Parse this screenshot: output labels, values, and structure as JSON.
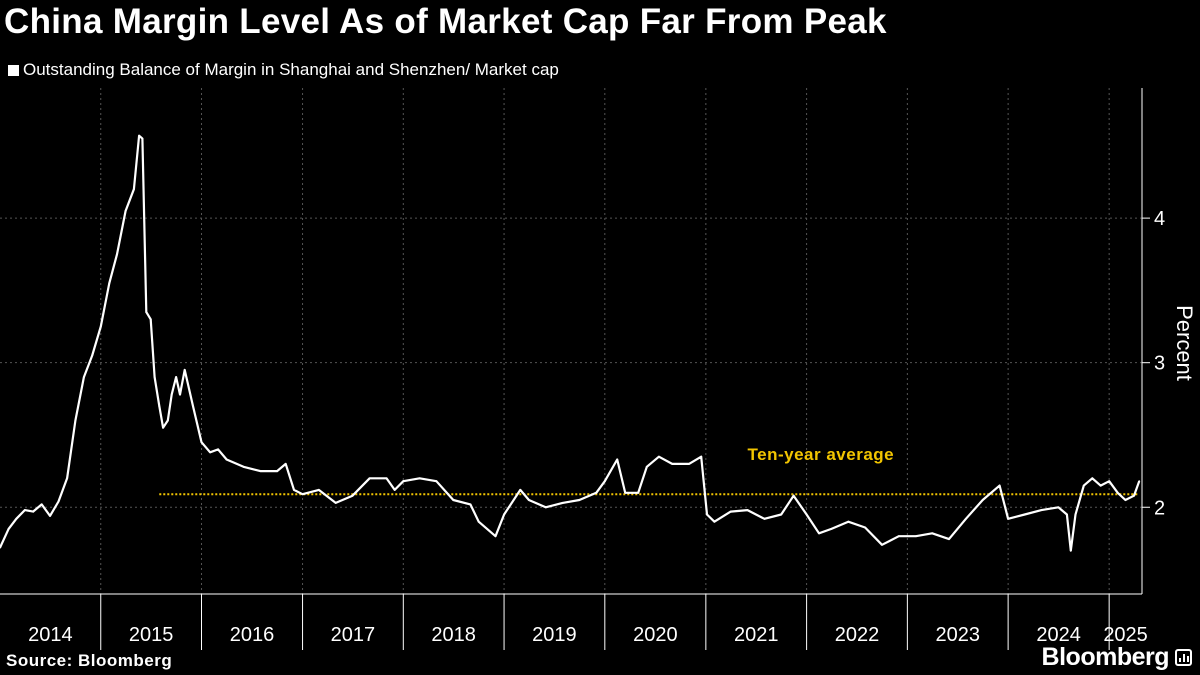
{
  "header": {
    "title": "China Margin Level As of Market Cap Far From Peak"
  },
  "footer": {
    "source": "Source: Bloomberg",
    "brand": "Bloomberg",
    "brand_icon": "bloomberg-chart-icon"
  },
  "colors": {
    "background": "#000000",
    "series": "#ffffff",
    "average_line": "#f2c500",
    "grid": "#555555"
  },
  "chart_data": {
    "type": "line",
    "title": "China Margin Level As of Market Cap Far From Peak",
    "ylabel": "Percent",
    "xlabel": "",
    "ylim": [
      1.4,
      4.9
    ],
    "y_ticks": [
      2,
      3,
      4
    ],
    "y_axis_position": "right",
    "x_tick_labels": [
      "2014",
      "2015",
      "2016",
      "2017",
      "2018",
      "2019",
      "2020",
      "2021",
      "2022",
      "2023",
      "2024",
      "2025"
    ],
    "x_range": [
      "2014-01-01",
      "2025-04-30"
    ],
    "grid": true,
    "legend_placement": "top-left",
    "series": [
      {
        "name": "Outstanding Balance of Margin in Shanghai and Shenzhen/ Market cap",
        "points": [
          [
            "2014-01-01",
            1.72
          ],
          [
            "2014-02-01",
            1.85
          ],
          [
            "2014-03-01",
            1.92
          ],
          [
            "2014-04-01",
            1.98
          ],
          [
            "2014-05-01",
            1.97
          ],
          [
            "2014-06-01",
            2.02
          ],
          [
            "2014-07-01",
            1.94
          ],
          [
            "2014-08-01",
            2.04
          ],
          [
            "2014-09-01",
            2.2
          ],
          [
            "2014-10-01",
            2.6
          ],
          [
            "2014-11-01",
            2.9
          ],
          [
            "2014-12-01",
            3.05
          ],
          [
            "2015-01-01",
            3.25
          ],
          [
            "2015-02-01",
            3.55
          ],
          [
            "2015-03-01",
            3.75
          ],
          [
            "2015-04-01",
            4.05
          ],
          [
            "2015-05-01",
            4.2
          ],
          [
            "2015-05-20",
            4.57
          ],
          [
            "2015-06-01",
            4.55
          ],
          [
            "2015-06-15",
            3.35
          ],
          [
            "2015-07-01",
            3.3
          ],
          [
            "2015-07-15",
            2.9
          ],
          [
            "2015-08-01",
            2.7
          ],
          [
            "2015-08-15",
            2.55
          ],
          [
            "2015-09-01",
            2.6
          ],
          [
            "2015-09-15",
            2.78
          ],
          [
            "2015-10-01",
            2.9
          ],
          [
            "2015-10-15",
            2.78
          ],
          [
            "2015-11-01",
            2.95
          ],
          [
            "2015-12-01",
            2.7
          ],
          [
            "2016-01-01",
            2.45
          ],
          [
            "2016-02-01",
            2.38
          ],
          [
            "2016-03-01",
            2.4
          ],
          [
            "2016-04-01",
            2.33
          ],
          [
            "2016-06-01",
            2.28
          ],
          [
            "2016-08-01",
            2.25
          ],
          [
            "2016-10-01",
            2.25
          ],
          [
            "2016-11-01",
            2.3
          ],
          [
            "2016-12-01",
            2.12
          ],
          [
            "2017-01-01",
            2.09
          ],
          [
            "2017-03-01",
            2.12
          ],
          [
            "2017-05-01",
            2.03
          ],
          [
            "2017-07-01",
            2.08
          ],
          [
            "2017-09-01",
            2.2
          ],
          [
            "2017-11-01",
            2.2
          ],
          [
            "2017-12-01",
            2.12
          ],
          [
            "2018-01-01",
            2.18
          ],
          [
            "2018-03-01",
            2.2
          ],
          [
            "2018-05-01",
            2.18
          ],
          [
            "2018-07-01",
            2.05
          ],
          [
            "2018-09-01",
            2.02
          ],
          [
            "2018-10-01",
            1.9
          ],
          [
            "2018-12-01",
            1.8
          ],
          [
            "2019-01-01",
            1.95
          ],
          [
            "2019-03-01",
            2.12
          ],
          [
            "2019-04-01",
            2.05
          ],
          [
            "2019-06-01",
            2.0
          ],
          [
            "2019-08-01",
            2.03
          ],
          [
            "2019-10-01",
            2.05
          ],
          [
            "2019-12-01",
            2.1
          ],
          [
            "2020-01-01",
            2.18
          ],
          [
            "2020-02-15",
            2.33
          ],
          [
            "2020-03-15",
            2.1
          ],
          [
            "2020-05-01",
            2.1
          ],
          [
            "2020-06-01",
            2.28
          ],
          [
            "2020-07-15",
            2.35
          ],
          [
            "2020-09-01",
            2.3
          ],
          [
            "2020-11-01",
            2.3
          ],
          [
            "2020-12-15",
            2.35
          ],
          [
            "2021-01-05",
            1.95
          ],
          [
            "2021-02-01",
            1.9
          ],
          [
            "2021-04-01",
            1.97
          ],
          [
            "2021-06-01",
            1.98
          ],
          [
            "2021-08-01",
            1.92
          ],
          [
            "2021-10-01",
            1.95
          ],
          [
            "2021-11-15",
            2.08
          ],
          [
            "2022-01-01",
            1.95
          ],
          [
            "2022-02-15",
            1.82
          ],
          [
            "2022-04-01",
            1.85
          ],
          [
            "2022-06-01",
            1.9
          ],
          [
            "2022-08-01",
            1.86
          ],
          [
            "2022-10-01",
            1.74
          ],
          [
            "2022-12-01",
            1.8
          ],
          [
            "2023-02-01",
            1.8
          ],
          [
            "2023-04-01",
            1.82
          ],
          [
            "2023-06-01",
            1.78
          ],
          [
            "2023-08-01",
            1.92
          ],
          [
            "2023-10-01",
            2.05
          ],
          [
            "2023-12-01",
            2.15
          ],
          [
            "2024-01-01",
            1.92
          ],
          [
            "2024-03-01",
            1.95
          ],
          [
            "2024-05-01",
            1.98
          ],
          [
            "2024-07-01",
            2.0
          ],
          [
            "2024-08-01",
            1.95
          ],
          [
            "2024-08-15",
            1.7
          ],
          [
            "2024-09-01",
            1.95
          ],
          [
            "2024-10-01",
            2.15
          ],
          [
            "2024-11-01",
            2.2
          ],
          [
            "2024-12-01",
            2.15
          ],
          [
            "2025-01-01",
            2.18
          ],
          [
            "2025-02-01",
            2.1
          ],
          [
            "2025-03-01",
            2.05
          ],
          [
            "2025-04-01",
            2.08
          ],
          [
            "2025-04-20",
            2.18
          ]
        ]
      }
    ],
    "reference_line": {
      "label": "Ten-year average",
      "value": 2.09,
      "start": "2015-08-01",
      "end": "2025-04-20",
      "style": "dotted"
    }
  }
}
